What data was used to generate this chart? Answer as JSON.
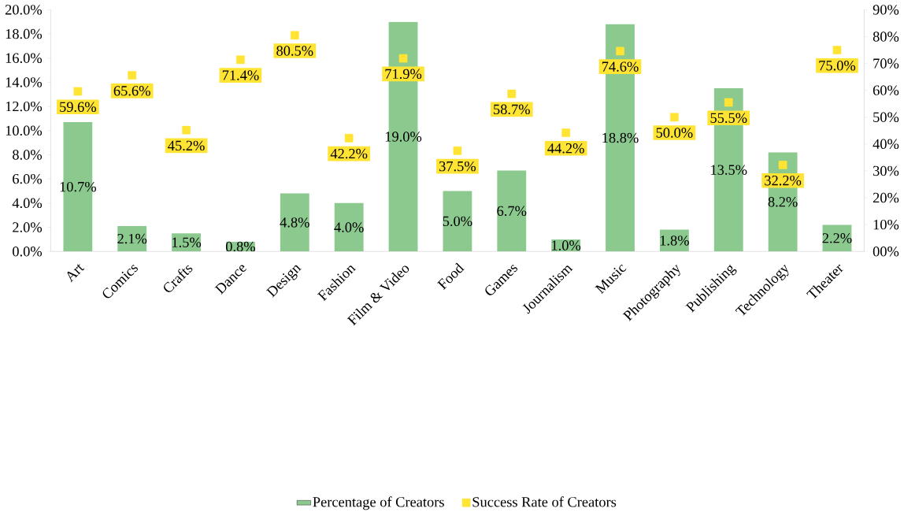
{
  "chart_data": {
    "type": "bar",
    "categories": [
      "Art",
      "Comics",
      "Crafts",
      "Dance",
      "Design",
      "Fashion",
      "Film & Video",
      "Food",
      "Games",
      "Journalism",
      "Music",
      "Photography",
      "Publishing",
      "Technology",
      "Theater"
    ],
    "series": [
      {
        "name": "Percentage of Creators",
        "color": "#8cc98f",
        "values": [
          10.7,
          2.1,
          1.5,
          0.8,
          4.8,
          4.0,
          19.0,
          5.0,
          6.7,
          1.0,
          18.8,
          1.8,
          13.5,
          8.2,
          2.2
        ],
        "value_labels": [
          "10.7%",
          "2.1%",
          "1.5%",
          "0.8%",
          "4.8%",
          "4.0%",
          "19.0%",
          "5.0%",
          "6.7%",
          "1.0%",
          "18.8%",
          "1.8%",
          "13.5%",
          "8.2%",
          "2.2%"
        ]
      },
      {
        "name": "Success Rate of Creators",
        "type": "scatter",
        "axis": "y2",
        "marker": "square",
        "color": "#ffe433",
        "values": [
          59.6,
          65.6,
          45.2,
          71.4,
          80.5,
          42.2,
          71.9,
          37.5,
          58.7,
          44.2,
          74.6,
          50.0,
          55.5,
          32.2,
          75.0
        ],
        "value_labels": [
          "59.6%",
          "65.6%",
          "45.2%",
          "71.4%",
          "80.5%",
          "42.2%",
          "71.9%",
          "37.5%",
          "58.7%",
          "44.2%",
          "74.6%",
          "50.0%",
          "55.5%",
          "32.2%",
          "75.0%"
        ]
      }
    ],
    "ylim": [
      0,
      20
    ],
    "yticks": [
      {
        "value": 0,
        "label": "0.0%"
      },
      {
        "value": 2,
        "label": "2.0%"
      },
      {
        "value": 4,
        "label": "4.0%"
      },
      {
        "value": 6,
        "label": "6.0%"
      },
      {
        "value": 8,
        "label": "8.0%"
      },
      {
        "value": 10,
        "label": "10.0%"
      },
      {
        "value": 12,
        "label": "12.0%"
      },
      {
        "value": 14,
        "label": "14.0%"
      },
      {
        "value": 16,
        "label": "16.0%"
      },
      {
        "value": 18,
        "label": "18.0%"
      },
      {
        "value": 20,
        "label": "20.0%"
      }
    ],
    "y2lim": [
      0,
      90
    ],
    "y2ticks": [
      {
        "value": 0,
        "label": "00%"
      },
      {
        "value": 10,
        "label": "10%"
      },
      {
        "value": 20,
        "label": "20%"
      },
      {
        "value": 30,
        "label": "30%"
      },
      {
        "value": 40,
        "label": "40%"
      },
      {
        "value": 50,
        "label": "50%"
      },
      {
        "value": 60,
        "label": "60%"
      },
      {
        "value": 70,
        "label": "70%"
      },
      {
        "value": 80,
        "label": "80%"
      },
      {
        "value": 90,
        "label": "90%"
      }
    ],
    "legend": "bottom"
  }
}
